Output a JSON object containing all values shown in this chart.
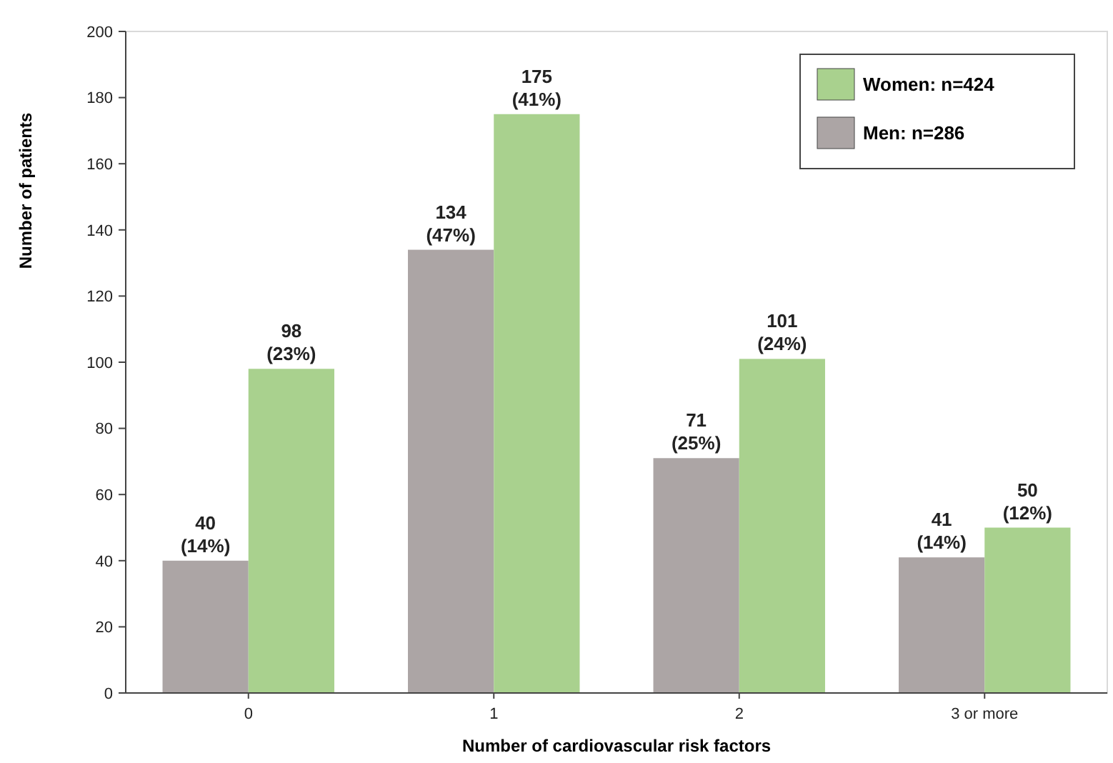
{
  "chart_data": {
    "type": "bar",
    "xlabel": "Number of cardiovascular risk factors",
    "ylabel": "Number of patients",
    "categories": [
      "0",
      "1",
      "2",
      "3 or more"
    ],
    "series": [
      {
        "name": "Men: n=286",
        "color": "#aca5a5",
        "values": [
          40,
          134,
          71,
          41
        ],
        "value_labels": [
          "40 (14%)",
          "134 (47%)",
          "71 (25%)",
          "41 (14%)"
        ]
      },
      {
        "name": "Women: n=424",
        "color": "#a9d18e",
        "values": [
          98,
          175,
          101,
          50
        ],
        "value_labels": [
          "98 (23%)",
          "175 (41%)",
          "101 (24%)",
          "50 (12%)"
        ]
      }
    ],
    "ylim": [
      0,
      200
    ],
    "yticks": [
      0,
      20,
      40,
      60,
      80,
      100,
      120,
      140,
      160,
      180,
      200
    ],
    "grid": false,
    "legend": "top right"
  }
}
